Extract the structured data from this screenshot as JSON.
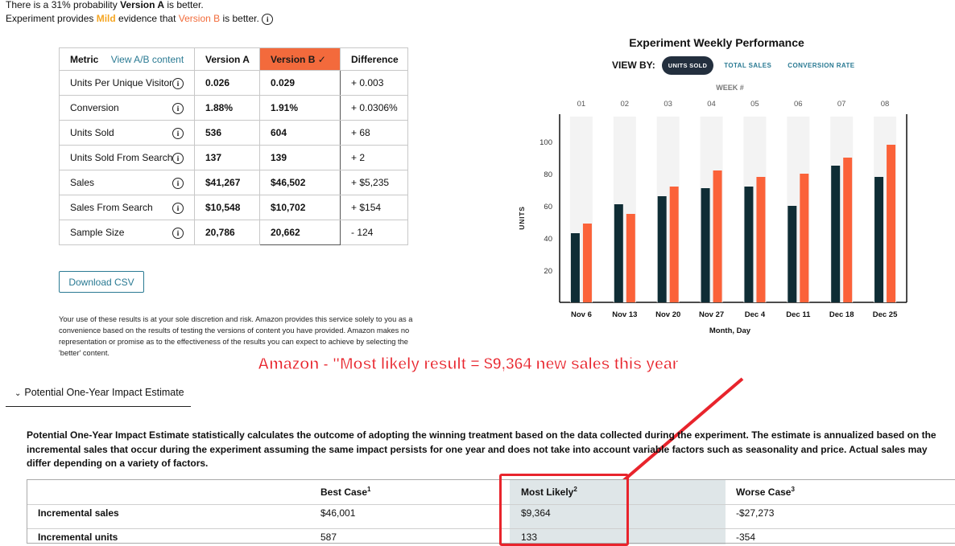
{
  "summary": {
    "line1_prefix": "There is a 31% probability ",
    "line1_bold": "Version A",
    "line1_suffix": " is better.",
    "line2_prefix": "Experiment provides ",
    "line2_mild": "Mild",
    "line2_mid": " evidence that ",
    "line2_version": "Version B",
    "line2_suffix": " is better."
  },
  "metrics_table": {
    "headers": {
      "metric": "Metric",
      "view_link": "View A/B content",
      "version_a": "Version A",
      "version_b": "Version B ✓",
      "difference": "Difference"
    },
    "rows": [
      {
        "metric": "Units Per Unique Visitor",
        "a": "0.026",
        "b": "0.029",
        "diff": "+ 0.003"
      },
      {
        "metric": "Conversion",
        "a": "1.88%",
        "b": "1.91%",
        "diff": "+ 0.0306%"
      },
      {
        "metric": "Units Sold",
        "a": "536",
        "b": "604",
        "diff": "+ 68"
      },
      {
        "metric": "Units Sold From Search",
        "a": "137",
        "b": "139",
        "diff": "+ 2"
      },
      {
        "metric": "Sales",
        "a": "$41,267",
        "b": "$46,502",
        "diff": "+ $5,235"
      },
      {
        "metric": "Sales From Search",
        "a": "$10,548",
        "b": "$10,702",
        "diff": "+ $154"
      },
      {
        "metric": "Sample Size",
        "a": "20,786",
        "b": "20,662",
        "diff": "- 124"
      }
    ]
  },
  "download_csv_label": "Download CSV",
  "disclaimer": "Your use of these results is at your sole discretion and risk. Amazon provides this service solely to you as a convenience based on the results of testing the versions of content you have provided. Amazon makes no representation or promise as to the effectiveness of the results you can expect to achieve by selecting the 'better' content.",
  "chart_panel": {
    "view_by_label": "VIEW BY:",
    "options": [
      "UNITS SOLD",
      "TOTAL SALES",
      "CONVERSION RATE"
    ],
    "selected_option": "UNITS SOLD"
  },
  "chart_data": {
    "type": "bar",
    "title": "Experiment Weekly Performance",
    "top_axis_label": "WEEK #",
    "weeks": [
      "01",
      "02",
      "03",
      "04",
      "05",
      "06",
      "07",
      "08"
    ],
    "categories": [
      "Nov 6",
      "Nov 13",
      "Nov 20",
      "Nov 27",
      "Dec 4",
      "Dec 11",
      "Dec 18",
      "Dec 25"
    ],
    "xlabel": "Month, Day",
    "ylabel": "UNITS",
    "yticks": [
      20,
      40,
      60,
      80,
      100
    ],
    "ylim": [
      0,
      117
    ],
    "series": [
      {
        "values": [
          43,
          61,
          66,
          71,
          72,
          60,
          85,
          78
        ],
        "color": "#0f2d35"
      },
      {
        "values": [
          49,
          55,
          72,
          82,
          78,
          80,
          90,
          98
        ],
        "color": "#fb6239"
      }
    ]
  },
  "annotation": "Amazon - \"Most likely result = $9,364 new sales this year",
  "impact": {
    "accordion_title": "Potential One-Year Impact Estimate",
    "description": "Potential One-Year Impact Estimate statistically calculates the outcome of adopting the winning treatment based on the data collected during the experiment. The estimate is annualized based on the incremental sales that occur during the experiment assuming the same impact persists for one year and does not take into account variable factors such as seasonality and price. Actual sales may differ depending on a variety of factors.",
    "columns": {
      "best": "Best Case",
      "best_sup": "1",
      "likely": "Most Likely",
      "likely_sup": "2",
      "worse": "Worse Case",
      "worse_sup": "3"
    },
    "rows": [
      {
        "label": "Incremental sales",
        "best": "$46,001",
        "likely": "$9,364",
        "worse": "-$27,273"
      },
      {
        "label": "Incremental units",
        "best": "587",
        "likely": "133",
        "worse": "-354"
      }
    ]
  }
}
